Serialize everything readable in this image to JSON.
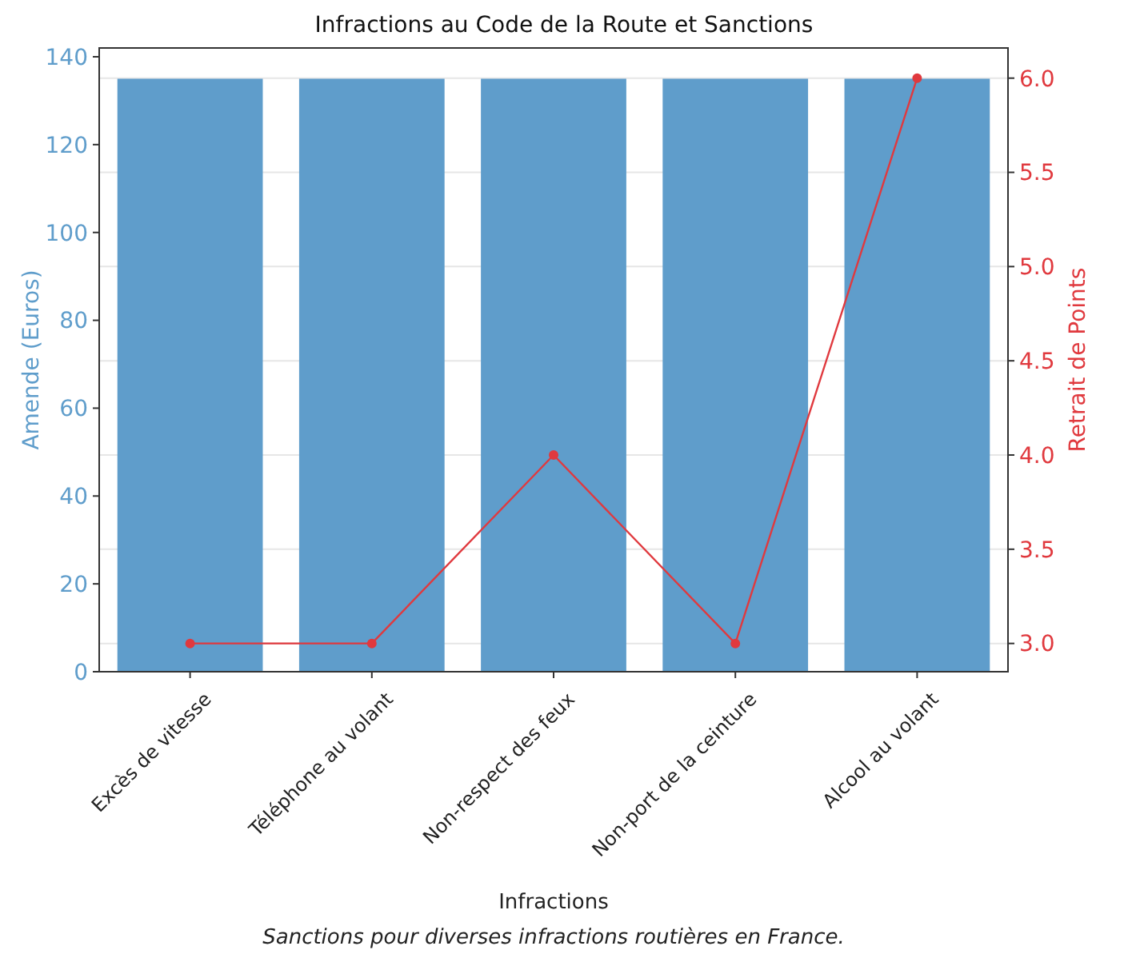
{
  "chart_data": {
    "type": "bar",
    "title": "Infractions au Code de la Route et Sanctions",
    "xlabel": "Infractions",
    "ylabel": "Amende (Euros)",
    "y2label": "Retrait de Points",
    "categories": [
      "Excès de vitesse",
      "Téléphone au volant",
      "Non-respect des feux",
      "Non-port de la ceinture",
      "Alcool au volant"
    ],
    "series": [
      {
        "color": "#5f9dcb",
        "values": [
          135,
          135,
          135,
          135,
          135
        ]
      },
      {
        "type": "line",
        "axis": "y2",
        "color": "#e0393e",
        "values": [
          3,
          3,
          4,
          3,
          6
        ],
        "marker": "circle"
      }
    ],
    "ylim": [
      0,
      142
    ],
    "yticks": [
      0,
      20,
      40,
      60,
      80,
      100,
      120,
      140
    ],
    "y2lim": [
      2.85,
      6.16
    ],
    "y2ticks": [
      {
        "value": 3,
        "label": "3.0"
      },
      {
        "value": 3.5,
        "label": "3.5"
      },
      {
        "value": 4,
        "label": "4.0"
      },
      {
        "value": 4.5,
        "label": "4.5"
      },
      {
        "value": 5,
        "label": "5.0"
      },
      {
        "value": 5.5,
        "label": "5.5"
      },
      {
        "value": 6,
        "label": "6.0"
      }
    ],
    "grid": "y",
    "annotations": [
      "Sanctions pour diverses infractions routières en France."
    ]
  }
}
